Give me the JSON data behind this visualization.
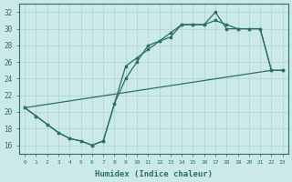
{
  "xlabel": "Humidex (Indice chaleur)",
  "xlim": [
    -0.5,
    23.5
  ],
  "ylim": [
    15.0,
    33.0
  ],
  "yticks": [
    16,
    18,
    20,
    22,
    24,
    26,
    28,
    30,
    32
  ],
  "xticks": [
    0,
    1,
    2,
    3,
    4,
    5,
    6,
    7,
    8,
    9,
    10,
    11,
    12,
    13,
    14,
    15,
    16,
    17,
    18,
    19,
    20,
    21,
    22,
    23
  ],
  "bg_color": "#cce9e9",
  "grid_color": "#b8d8d8",
  "line_color": "#2a7060",
  "curve1_x": [
    0,
    1,
    2,
    3,
    4,
    5,
    6,
    7,
    8,
    9,
    10,
    11,
    12,
    13,
    14,
    15,
    16,
    17,
    18,
    19,
    20,
    21,
    22,
    23
  ],
  "curve1_y": [
    20.5,
    19.5,
    18.5,
    17.5,
    16.8,
    16.5,
    16.0,
    16.5,
    21.0,
    25.5,
    26.5,
    27.5,
    28.5,
    29.5,
    30.5,
    30.5,
    30.5,
    32.0,
    30.0,
    30.0,
    30.0,
    30.0,
    25.0,
    25.0
  ],
  "curve2_x": [
    0,
    1,
    2,
    3,
    4,
    5,
    6,
    7,
    8,
    9,
    10,
    11,
    12,
    13,
    14,
    15,
    16,
    17,
    18,
    19,
    20,
    21,
    22,
    23
  ],
  "curve2_y": [
    20.5,
    19.5,
    18.5,
    17.5,
    16.8,
    16.5,
    16.0,
    16.5,
    21.0,
    24.0,
    26.0,
    28.0,
    28.5,
    29.0,
    30.5,
    30.5,
    30.5,
    31.0,
    30.5,
    30.0,
    30.0,
    30.0,
    25.0,
    25.0
  ],
  "line3_x": [
    0,
    22
  ],
  "line3_y": [
    20.5,
    25.0
  ]
}
